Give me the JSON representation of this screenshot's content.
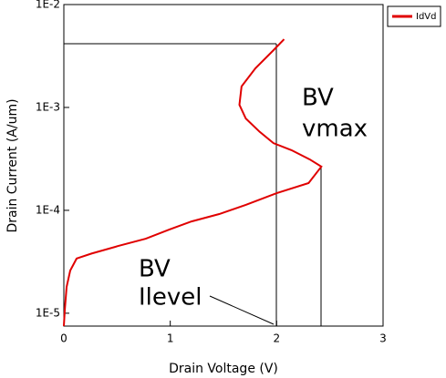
{
  "chart_data": {
    "type": "line",
    "x_label": "Drain Voltage (V)",
    "y_label": "Drain Current (A/um)",
    "yscale": "log",
    "xlim": [
      0,
      3
    ],
    "xticks": [
      0,
      1,
      2,
      3
    ],
    "ylim": [
      7.5e-06,
      0.01
    ],
    "yticks": [
      {
        "value": 0.01,
        "label": "1E-2"
      },
      {
        "value": 0.001,
        "label": "1E-3"
      },
      {
        "value": 0.0001,
        "label": "1E-4"
      },
      {
        "value": 1e-05,
        "label": "1E-5"
      }
    ],
    "legend": "top-right-outside",
    "annotations": [
      [
        "BV",
        "vmax"
      ],
      [
        "BV",
        "Ilevel"
      ]
    ],
    "series": [
      {
        "name": "IdVd",
        "color": "#e00000",
        "x": [
          0,
          0.009,
          0.026,
          0.06,
          0.12,
          0.26,
          0.51,
          0.77,
          0.99,
          1.2,
          1.46,
          1.71,
          2.0,
          2.3,
          2.42,
          2.31,
          2.14,
          1.97,
          1.84,
          1.71,
          1.65,
          1.67,
          1.8,
          1.97,
          2.07
        ],
        "values": [
          7.5e-06,
          1.08e-05,
          1.8e-05,
          2.6e-05,
          3.4e-05,
          3.8e-05,
          4.5e-05,
          5.3e-05,
          6.5e-05,
          7.8e-05,
          9.2e-05,
          0.000113,
          0.000147,
          0.000184,
          0.000266,
          0.000313,
          0.000384,
          0.00045,
          0.00058,
          0.00078,
          0.00106,
          0.0016,
          0.0024,
          0.0036,
          0.0046
        ]
      }
    ]
  }
}
